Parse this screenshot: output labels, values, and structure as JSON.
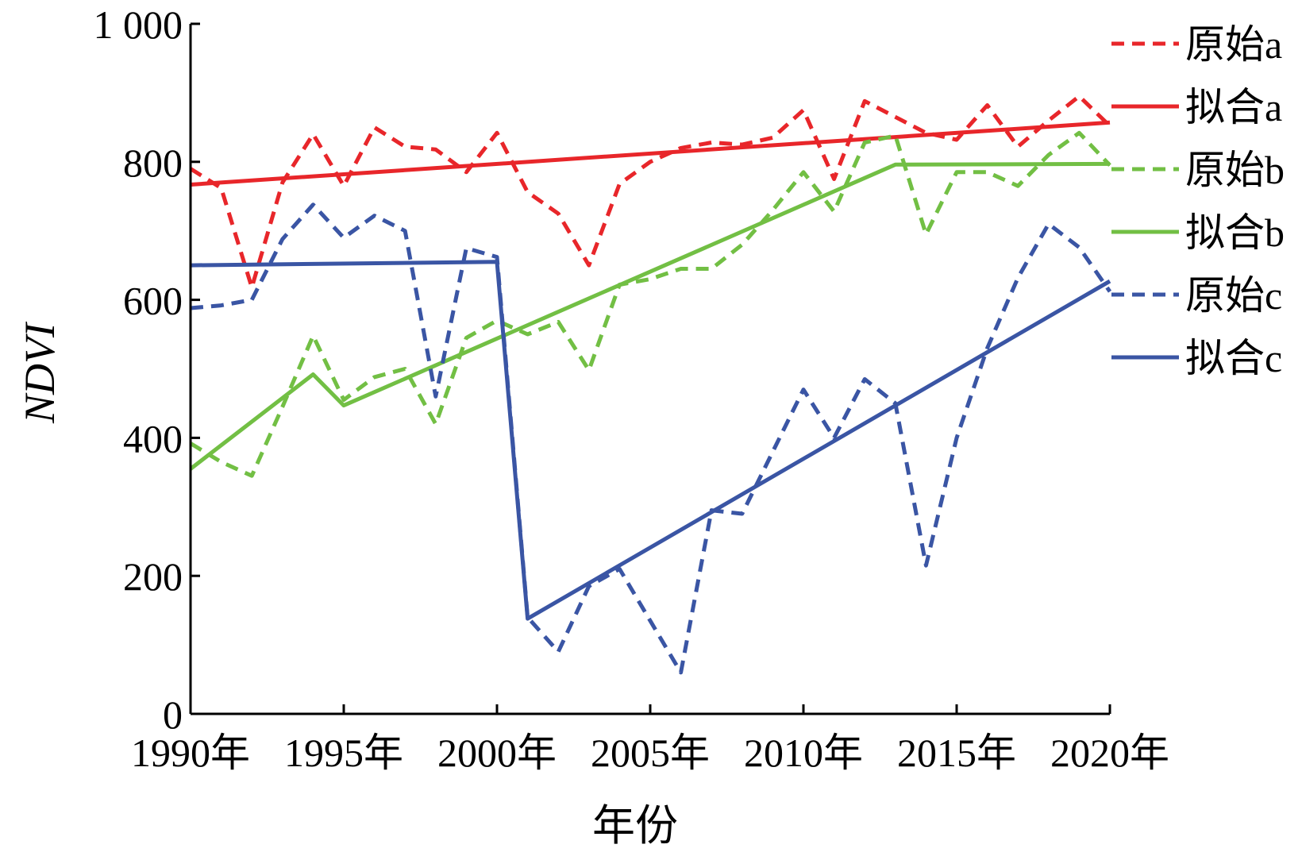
{
  "chart_data": {
    "type": "line",
    "xlabel": "年份",
    "ylabel": "NDVI",
    "xlim": [
      1990,
      2020
    ],
    "ylim": [
      0,
      1000
    ],
    "x_ticks": [
      1990,
      1995,
      2000,
      2005,
      2010,
      2015,
      2020
    ],
    "x_tick_labels": [
      "1990年",
      "1995年",
      "2000年",
      "2005年",
      "2010年",
      "2015年",
      "2020年"
    ],
    "y_ticks": [
      0,
      200,
      400,
      600,
      800,
      1000
    ],
    "y_tick_labels": [
      "0",
      "200",
      "400",
      "600",
      "800",
      "1 000"
    ],
    "legend_position": "top-right",
    "series": [
      {
        "name": "原始a",
        "style": "dashed",
        "color": "#e8262a",
        "x": [
          1990,
          1991,
          1992,
          1993,
          1994,
          1995,
          1996,
          1997,
          1998,
          1999,
          2000,
          2001,
          2002,
          2003,
          2004,
          2005,
          2006,
          2007,
          2008,
          2009,
          2010,
          2011,
          2012,
          2013,
          2014,
          2015,
          2016,
          2017,
          2018,
          2019,
          2020
        ],
        "y": [
          790,
          762,
          618,
          770,
          840,
          765,
          850,
          822,
          818,
          785,
          842,
          756,
          725,
          650,
          768,
          800,
          820,
          828,
          825,
          835,
          875,
          775,
          888,
          865,
          842,
          832,
          882,
          822,
          860,
          895,
          852
        ]
      },
      {
        "name": "拟合a",
        "style": "solid",
        "color": "#e8262a",
        "x": [
          1990,
          2020
        ],
        "y": [
          767,
          857
        ]
      },
      {
        "name": "原始b",
        "style": "dashed",
        "color": "#72bf44",
        "x": [
          1990,
          1991,
          1992,
          1993,
          1994,
          1995,
          1996,
          1997,
          1998,
          1999,
          2000,
          2001,
          2002,
          2003,
          2004,
          2005,
          2006,
          2007,
          2008,
          2009,
          2010,
          2011,
          2012,
          2013,
          2014,
          2015,
          2016,
          2017,
          2018,
          2019,
          2020
        ],
        "y": [
          392,
          365,
          345,
          445,
          548,
          455,
          488,
          500,
          420,
          545,
          570,
          550,
          568,
          498,
          622,
          630,
          645,
          645,
          680,
          730,
          785,
          728,
          828,
          838,
          695,
          785,
          785,
          765,
          810,
          842,
          795
        ]
      },
      {
        "name": "拟合b",
        "style": "solid",
        "color": "#72bf44",
        "x": [
          1990,
          1994,
          1995,
          2013,
          2020
        ],
        "y": [
          355,
          492,
          447,
          796,
          797
        ]
      },
      {
        "name": "原始c",
        "style": "dashed",
        "color": "#3a55a4",
        "x": [
          1990,
          1991,
          1992,
          1993,
          1994,
          1995,
          1996,
          1997,
          1998,
          1999,
          2000,
          2001,
          2002,
          2003,
          2004,
          2005,
          2006,
          2007,
          2008,
          2009,
          2010,
          2011,
          2012,
          2013,
          2014,
          2015,
          2016,
          2017,
          2018,
          2019,
          2020
        ],
        "y": [
          588,
          592,
          600,
          688,
          738,
          690,
          722,
          700,
          460,
          675,
          662,
          140,
          90,
          185,
          210,
          135,
          60,
          295,
          290,
          380,
          470,
          400,
          485,
          450,
          215,
          400,
          530,
          632,
          710,
          676,
          612
        ]
      },
      {
        "name": "拟合c",
        "style": "solid",
        "color": "#3a55a4",
        "x": [
          1990,
          2000,
          2001,
          2020
        ],
        "y": [
          650,
          655,
          138,
          627
        ]
      }
    ]
  }
}
